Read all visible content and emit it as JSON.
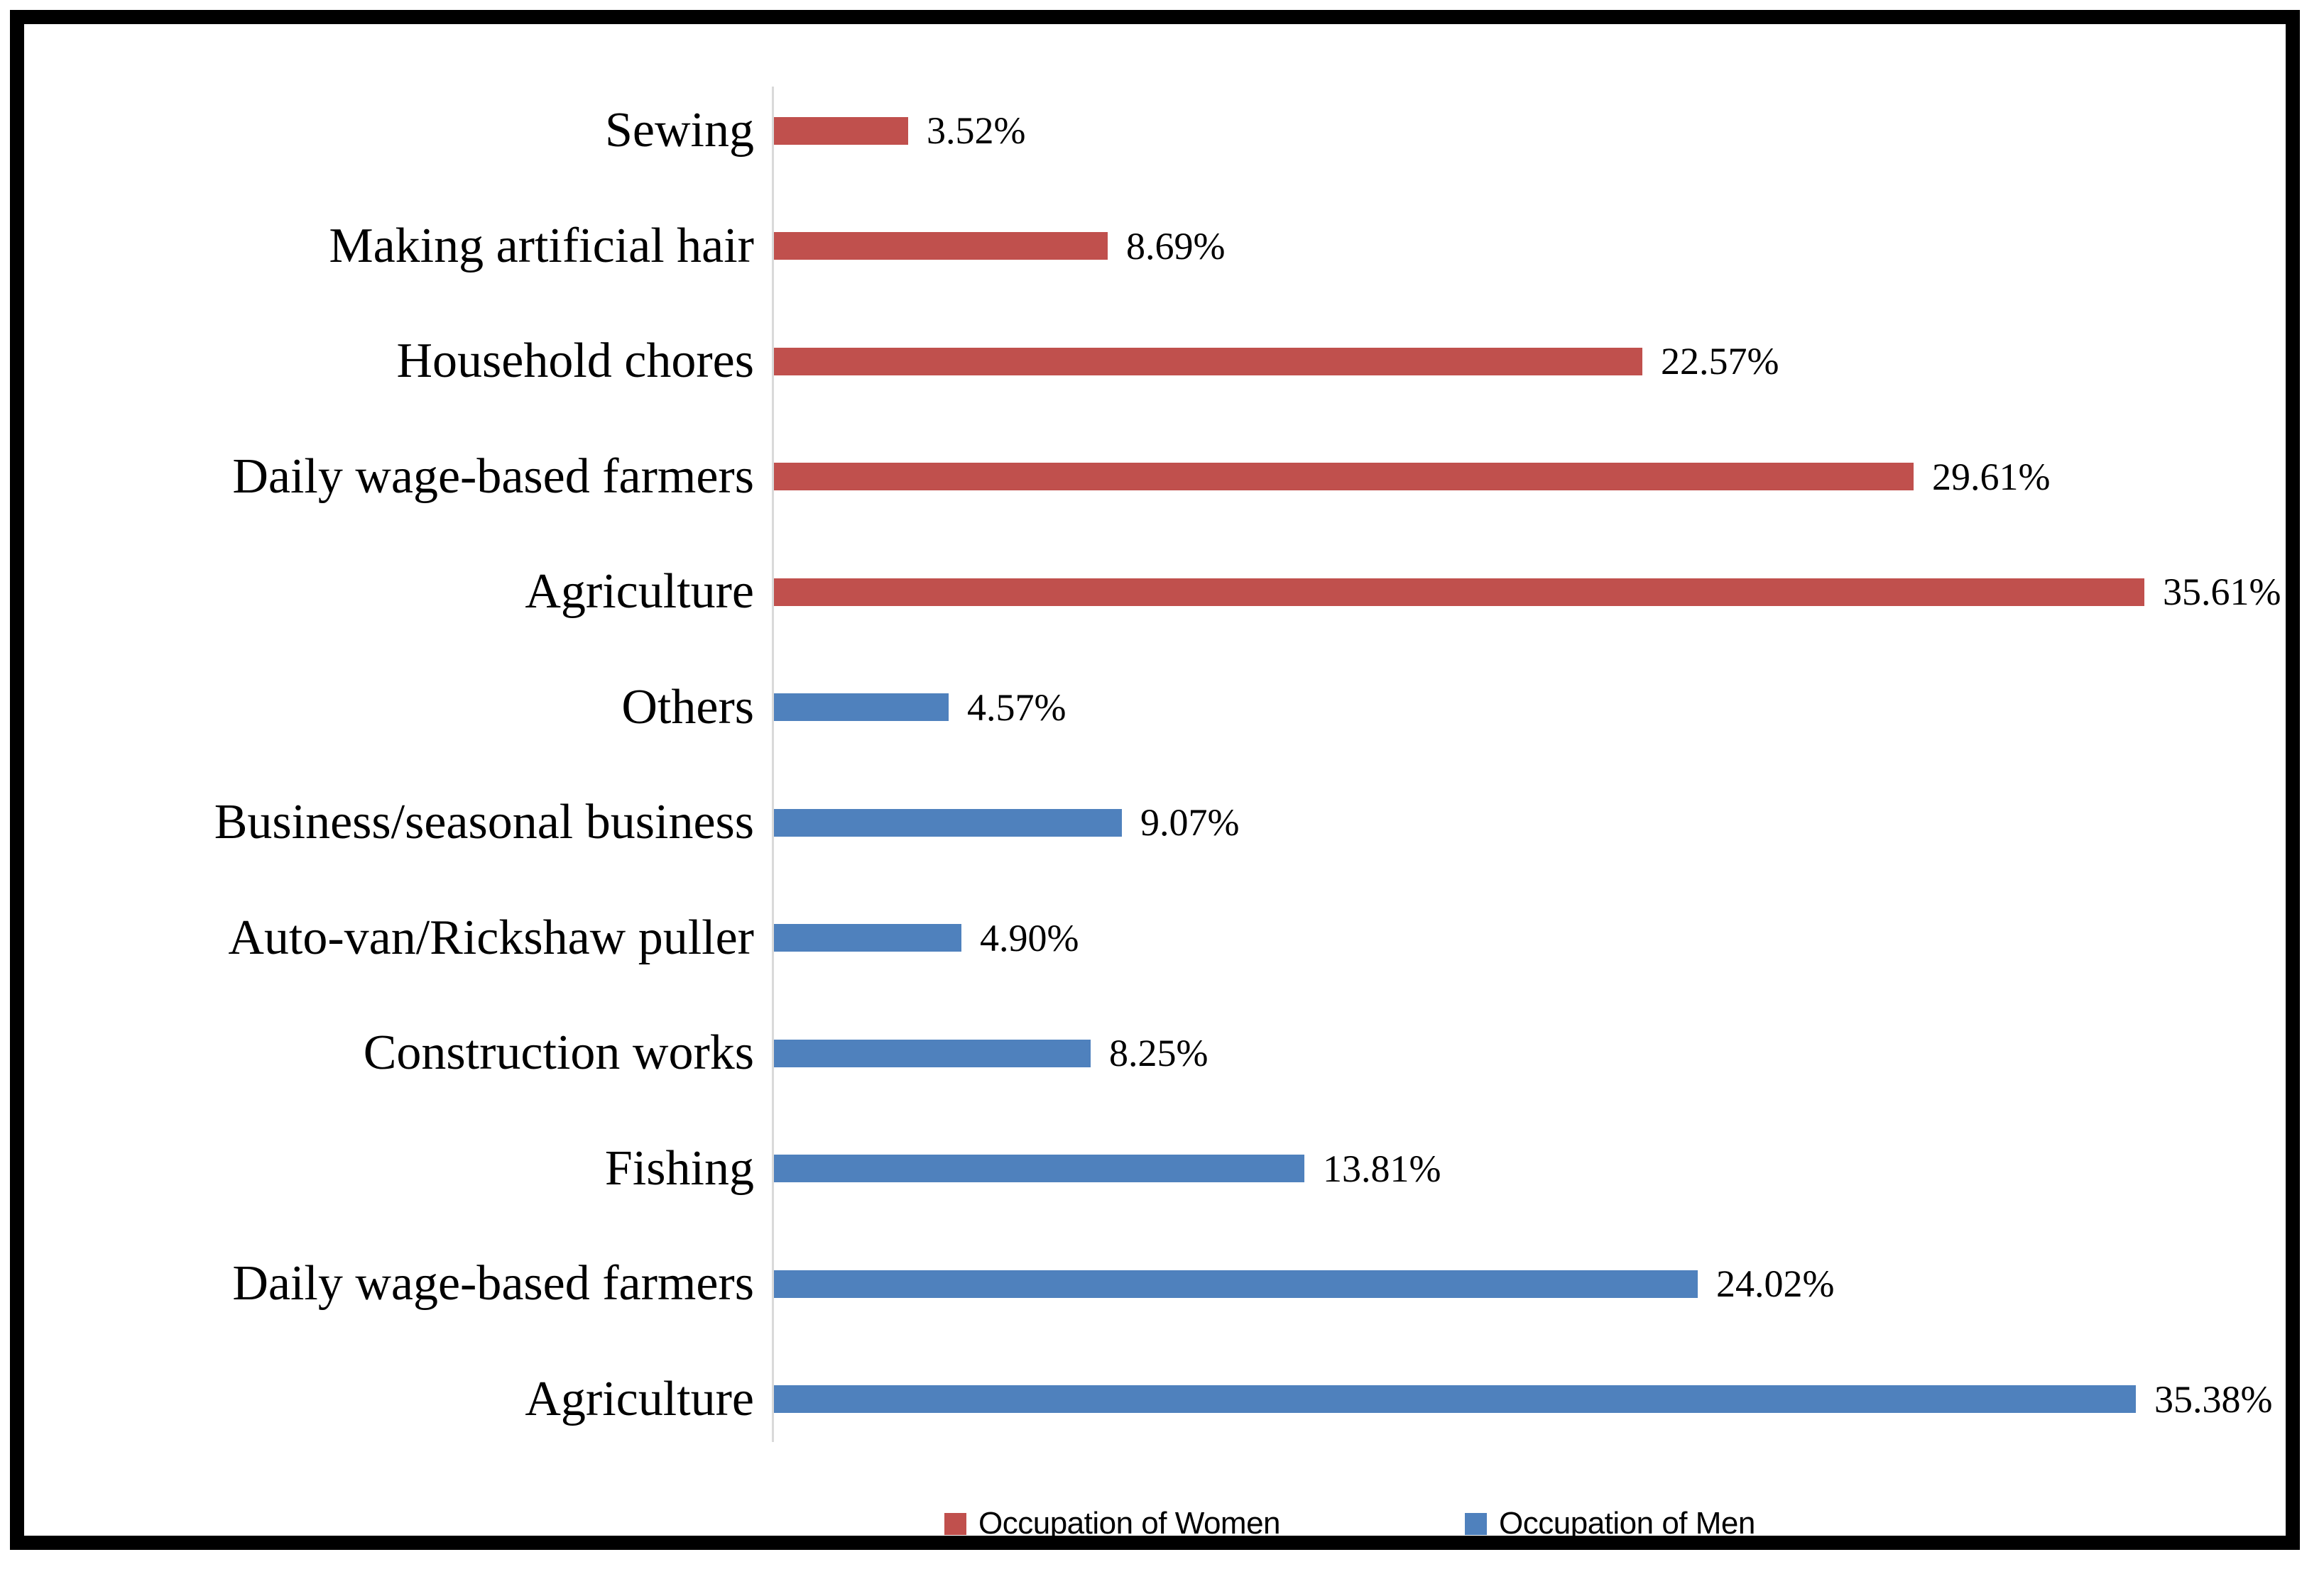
{
  "chart_data": {
    "type": "bar",
    "orientation": "horizontal",
    "title": "",
    "xlabel": "",
    "ylabel": "",
    "xlim": [
      0,
      40
    ],
    "gridlines": false,
    "x_axis_tick_labels": false,
    "value_labels": true,
    "legend_position": "bottom",
    "colors": {
      "women": "#c0504d",
      "men": "#4f81bd",
      "axis_line": "#d9d9d9"
    },
    "rows_top_to_bottom": [
      {
        "category": "Sewing",
        "series": "women",
        "value": 3.52,
        "label": "3.52%"
      },
      {
        "category": "Making artificial hair",
        "series": "women",
        "value": 8.69,
        "label": "8.69%"
      },
      {
        "category": "Household chores",
        "series": "women",
        "value": 22.57,
        "label": "22.57%"
      },
      {
        "category": "Daily wage-based farmers",
        "series": "women",
        "value": 29.61,
        "label": "29.61%"
      },
      {
        "category": "Agriculture",
        "series": "women",
        "value": 35.61,
        "label": "35.61%"
      },
      {
        "category": "Others",
        "series": "men",
        "value": 4.57,
        "label": "4.57%"
      },
      {
        "category": "Business/seasonal business",
        "series": "men",
        "value": 9.07,
        "label": "9.07%"
      },
      {
        "category": "Auto-van/Rickshaw puller",
        "series": "men",
        "value": 4.9,
        "label": "4.90%"
      },
      {
        "category": "Construction works",
        "series": "men",
        "value": 8.25,
        "label": "8.25%"
      },
      {
        "category": "Fishing",
        "series": "men",
        "value": 13.81,
        "label": "13.81%"
      },
      {
        "category": "Daily wage-based farmers",
        "series": "men",
        "value": 24.02,
        "label": "24.02%"
      },
      {
        "category": "Agriculture",
        "series": "men",
        "value": 35.38,
        "label": "35.38%"
      }
    ],
    "series": [
      {
        "name": "Occupation of Women",
        "color": "#c0504d",
        "categories": [
          "Sewing",
          "Making artificial hair",
          "Household chores",
          "Daily wage-based farmers",
          "Agriculture"
        ],
        "values": [
          3.52,
          8.69,
          22.57,
          29.61,
          35.61
        ]
      },
      {
        "name": "Occupation of Men",
        "color": "#4f81bd",
        "categories": [
          "Others",
          "Business/seasonal business",
          "Auto-van/Rickshaw puller",
          "Construction works",
          "Fishing",
          "Daily wage-based farmers",
          "Agriculture"
        ],
        "values": [
          4.57,
          9.07,
          4.9,
          8.25,
          13.81,
          24.02,
          35.38
        ]
      }
    ]
  },
  "legend": [
    {
      "label": "Occupation of Women",
      "series": "women",
      "color": "#c0504d"
    },
    {
      "label": "Occupation of Men",
      "series": "men",
      "color": "#4f81bd"
    }
  ]
}
